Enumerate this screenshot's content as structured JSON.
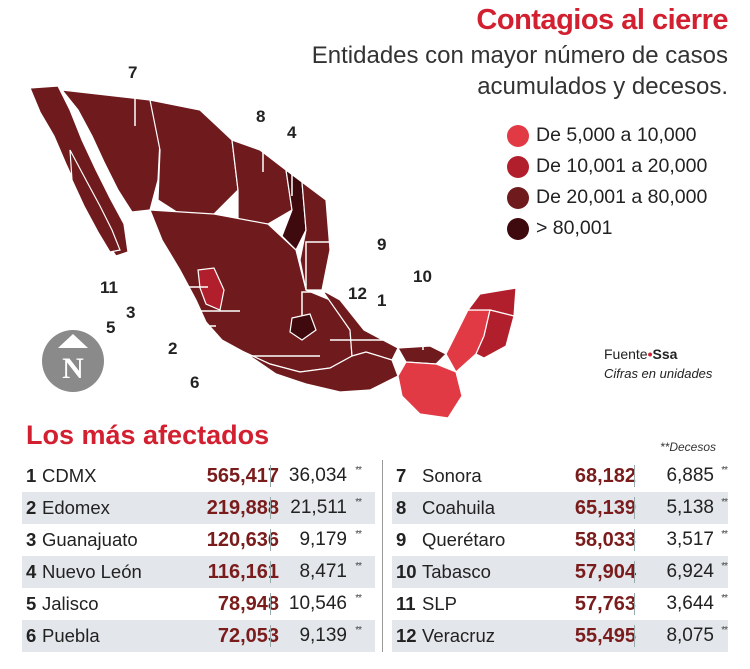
{
  "header": {
    "title": "Contagios al cierre",
    "subtitle": "Entidades con mayor número de casos acumulados y decesos."
  },
  "legend": [
    {
      "label": "De 5,000 a 10,000",
      "color": "#e13a45"
    },
    {
      "label": "De 10,001 a 20,000",
      "color": "#b21f2c"
    },
    {
      "label": "De 20,001 a 80,000",
      "color": "#6f1a1d"
    },
    {
      "label": "> 80,001",
      "color": "#3f0a0e"
    }
  ],
  "map": {
    "labels": [
      "7",
      "8",
      "4",
      "9",
      "10",
      "11",
      "12",
      "3",
      "1",
      "5",
      "2",
      "6"
    ],
    "north_letter": "N"
  },
  "source": {
    "prefix": "Fuente",
    "name": "Ssa",
    "note": "Cifras en unidades"
  },
  "table": {
    "title": "Los más afectados",
    "deaths_note": "Decesos",
    "deaths_marker": "**",
    "left": [
      {
        "rank": "1",
        "state": "CDMX",
        "cases": "565,417",
        "deaths": "36,034"
      },
      {
        "rank": "2",
        "state": "Edomex",
        "cases": "219,888",
        "deaths": "21,511"
      },
      {
        "rank": "3",
        "state": "Guanajuato",
        "cases": "120,636",
        "deaths": "9,179"
      },
      {
        "rank": "4",
        "state": "Nuevo León",
        "cases": "116,161",
        "deaths": "8,471"
      },
      {
        "rank": "5",
        "state": "Jalisco",
        "cases": "78,948",
        "deaths": "10,546"
      },
      {
        "rank": "6",
        "state": "Puebla",
        "cases": "72,053",
        "deaths": "9,139"
      }
    ],
    "right": [
      {
        "rank": "7",
        "state": "Sonora",
        "cases": "68,182",
        "deaths": "6,885"
      },
      {
        "rank": "8",
        "state": "Coahuila",
        "cases": "65,139",
        "deaths": "5,138"
      },
      {
        "rank": "9",
        "state": "Querétaro",
        "cases": "58,033",
        "deaths": "3,517"
      },
      {
        "rank": "10",
        "state": "Tabasco",
        "cases": "57,904",
        "deaths": "6,924"
      },
      {
        "rank": "11",
        "state": "SLP",
        "cases": "57,763",
        "deaths": "3,644"
      },
      {
        "rank": "12",
        "state": "Veracruz",
        "cases": "55,495",
        "deaths": "8,075"
      }
    ]
  }
}
